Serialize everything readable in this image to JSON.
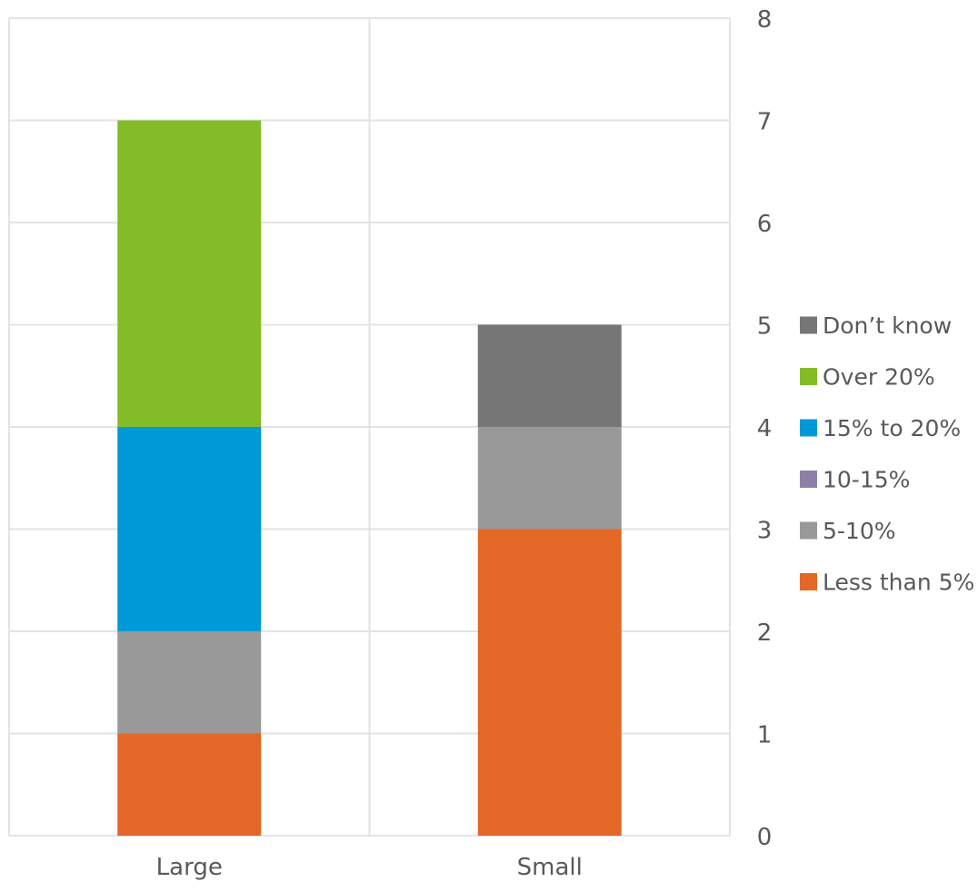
{
  "chart_data": {
    "type": "bar",
    "stacked": true,
    "categories": [
      "Large",
      "Small"
    ],
    "series": [
      {
        "name": "Less than 5%",
        "color": "#E36727",
        "values": [
          1,
          3
        ]
      },
      {
        "name": "5-10%",
        "color": "#999999",
        "values": [
          1,
          1
        ]
      },
      {
        "name": "10-15%",
        "color": "#8C7FA8",
        "values": [
          0,
          0
        ]
      },
      {
        "name": "15% to 20%",
        "color": "#0099D8",
        "values": [
          2,
          0
        ]
      },
      {
        "name": "Over 20%",
        "color": "#83BC27",
        "values": [
          3,
          0
        ]
      },
      {
        "name": "Don’t know",
        "color": "#767676",
        "values": [
          0,
          1
        ]
      }
    ],
    "ylim": [
      0,
      8
    ],
    "yticks": [
      "0",
      "1",
      "2",
      "3",
      "4",
      "5",
      "6",
      "7",
      "8"
    ],
    "y_axis_position": "right",
    "legend_position": "right",
    "legend_order": [
      "Don’t know",
      "Over 20%",
      "15% to 20%",
      "10-15%",
      "5-10%",
      "Less than 5%"
    ],
    "grid": true,
    "colors": {
      "grid": "#E3E3E3",
      "text": "#595959"
    }
  }
}
